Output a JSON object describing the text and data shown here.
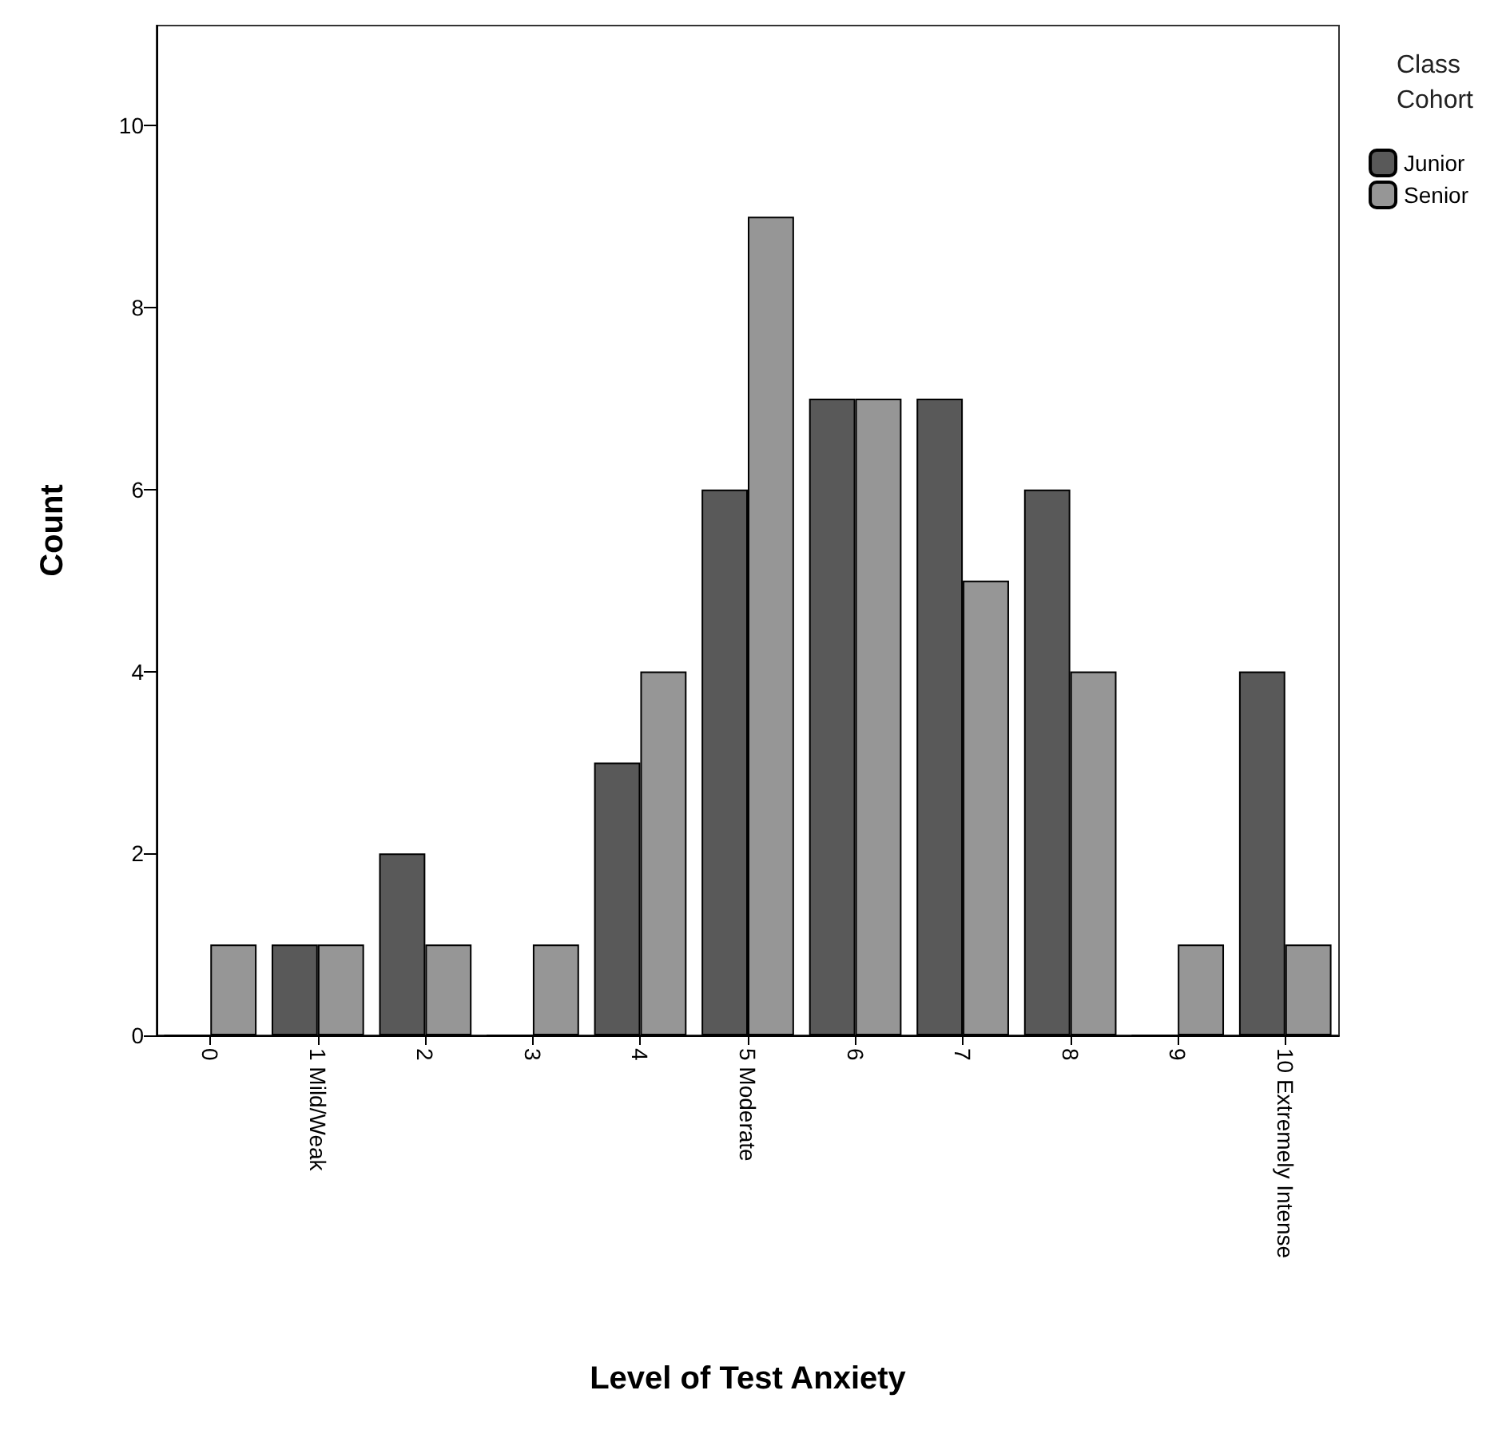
{
  "chart_data": {
    "type": "bar",
    "xlabel": "Level of Test Anxiety",
    "ylabel": "Count",
    "legend_title": "Class Cohort",
    "legend": "top right",
    "categories": [
      "0",
      "1 Mild/Weak",
      "2",
      "3",
      "4",
      "5 Moderate",
      "6",
      "7",
      "8",
      "9",
      "10 Extremely Intense"
    ],
    "series": [
      {
        "name": "Junior",
        "color": "#595959",
        "values": [
          0,
          1,
          2,
          0,
          3,
          6,
          7,
          7,
          6,
          0,
          4
        ]
      },
      {
        "name": "Senior",
        "color": "#969696",
        "values": [
          1,
          1,
          1,
          1,
          4,
          9,
          7,
          5,
          4,
          1,
          1
        ]
      }
    ],
    "ylim": [
      0,
      11.1
    ],
    "yticks": [
      0,
      2,
      4,
      6,
      8,
      10
    ],
    "grid": false
  }
}
